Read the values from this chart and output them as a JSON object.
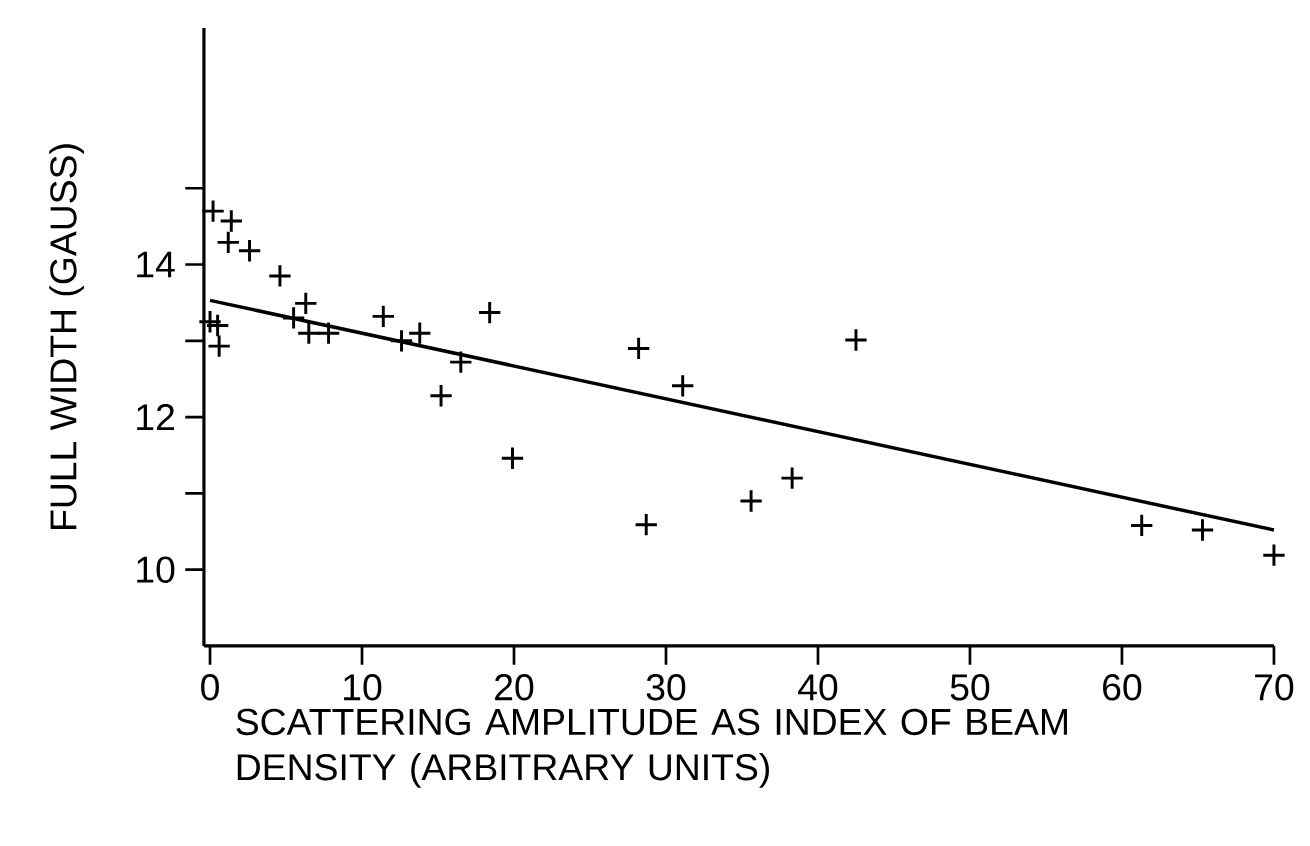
{
  "chart_data": {
    "type": "scatter",
    "xlabel": "SCATTERING AMPLITUDE AS INDEX OF BEAM DENSITY (ARBITRARY UNITS)",
    "ylabel": "FULL WIDTH (GAUSS)",
    "xlim": [
      -0.4,
      70
    ],
    "ylim": [
      9,
      17.1
    ],
    "xticks": [
      0,
      10,
      20,
      30,
      40,
      50,
      60,
      70
    ],
    "yticks": [
      10,
      {
        "value": 11,
        "label": null
      },
      12,
      {
        "value": 13,
        "label": null
      },
      14,
      {
        "value": 15,
        "label": null
      }
    ],
    "marker": "cross",
    "grid": false,
    "line_style": "solid",
    "series": [
      {
        "color": "#000000",
        "x": [
          0.2,
          1.4,
          1.2,
          2.6,
          4.6,
          6.3,
          5.5,
          6.5,
          7.8,
          0.0,
          0.5,
          0.6,
          11.4,
          12.6,
          13.8,
          15.2,
          16.5,
          18.4,
          19.9,
          28.2,
          28.7,
          31.1,
          42.5,
          35.6,
          38.3,
          61.3,
          65.3,
          70.0
        ],
        "values": [
          14.7,
          14.57,
          14.29,
          14.18,
          13.85,
          13.49,
          13.3,
          13.1,
          13.1,
          13.25,
          13.2,
          12.93,
          13.32,
          13.0,
          13.1,
          12.28,
          12.72,
          13.37,
          11.46,
          12.9,
          10.59,
          12.41,
          13.01,
          10.9,
          11.2,
          10.58,
          10.52,
          10.19
        ]
      },
      {
        "type": "line",
        "color": "#000000",
        "marker": "none",
        "x": [
          0,
          70
        ],
        "values": [
          13.53,
          10.52
        ]
      }
    ]
  }
}
